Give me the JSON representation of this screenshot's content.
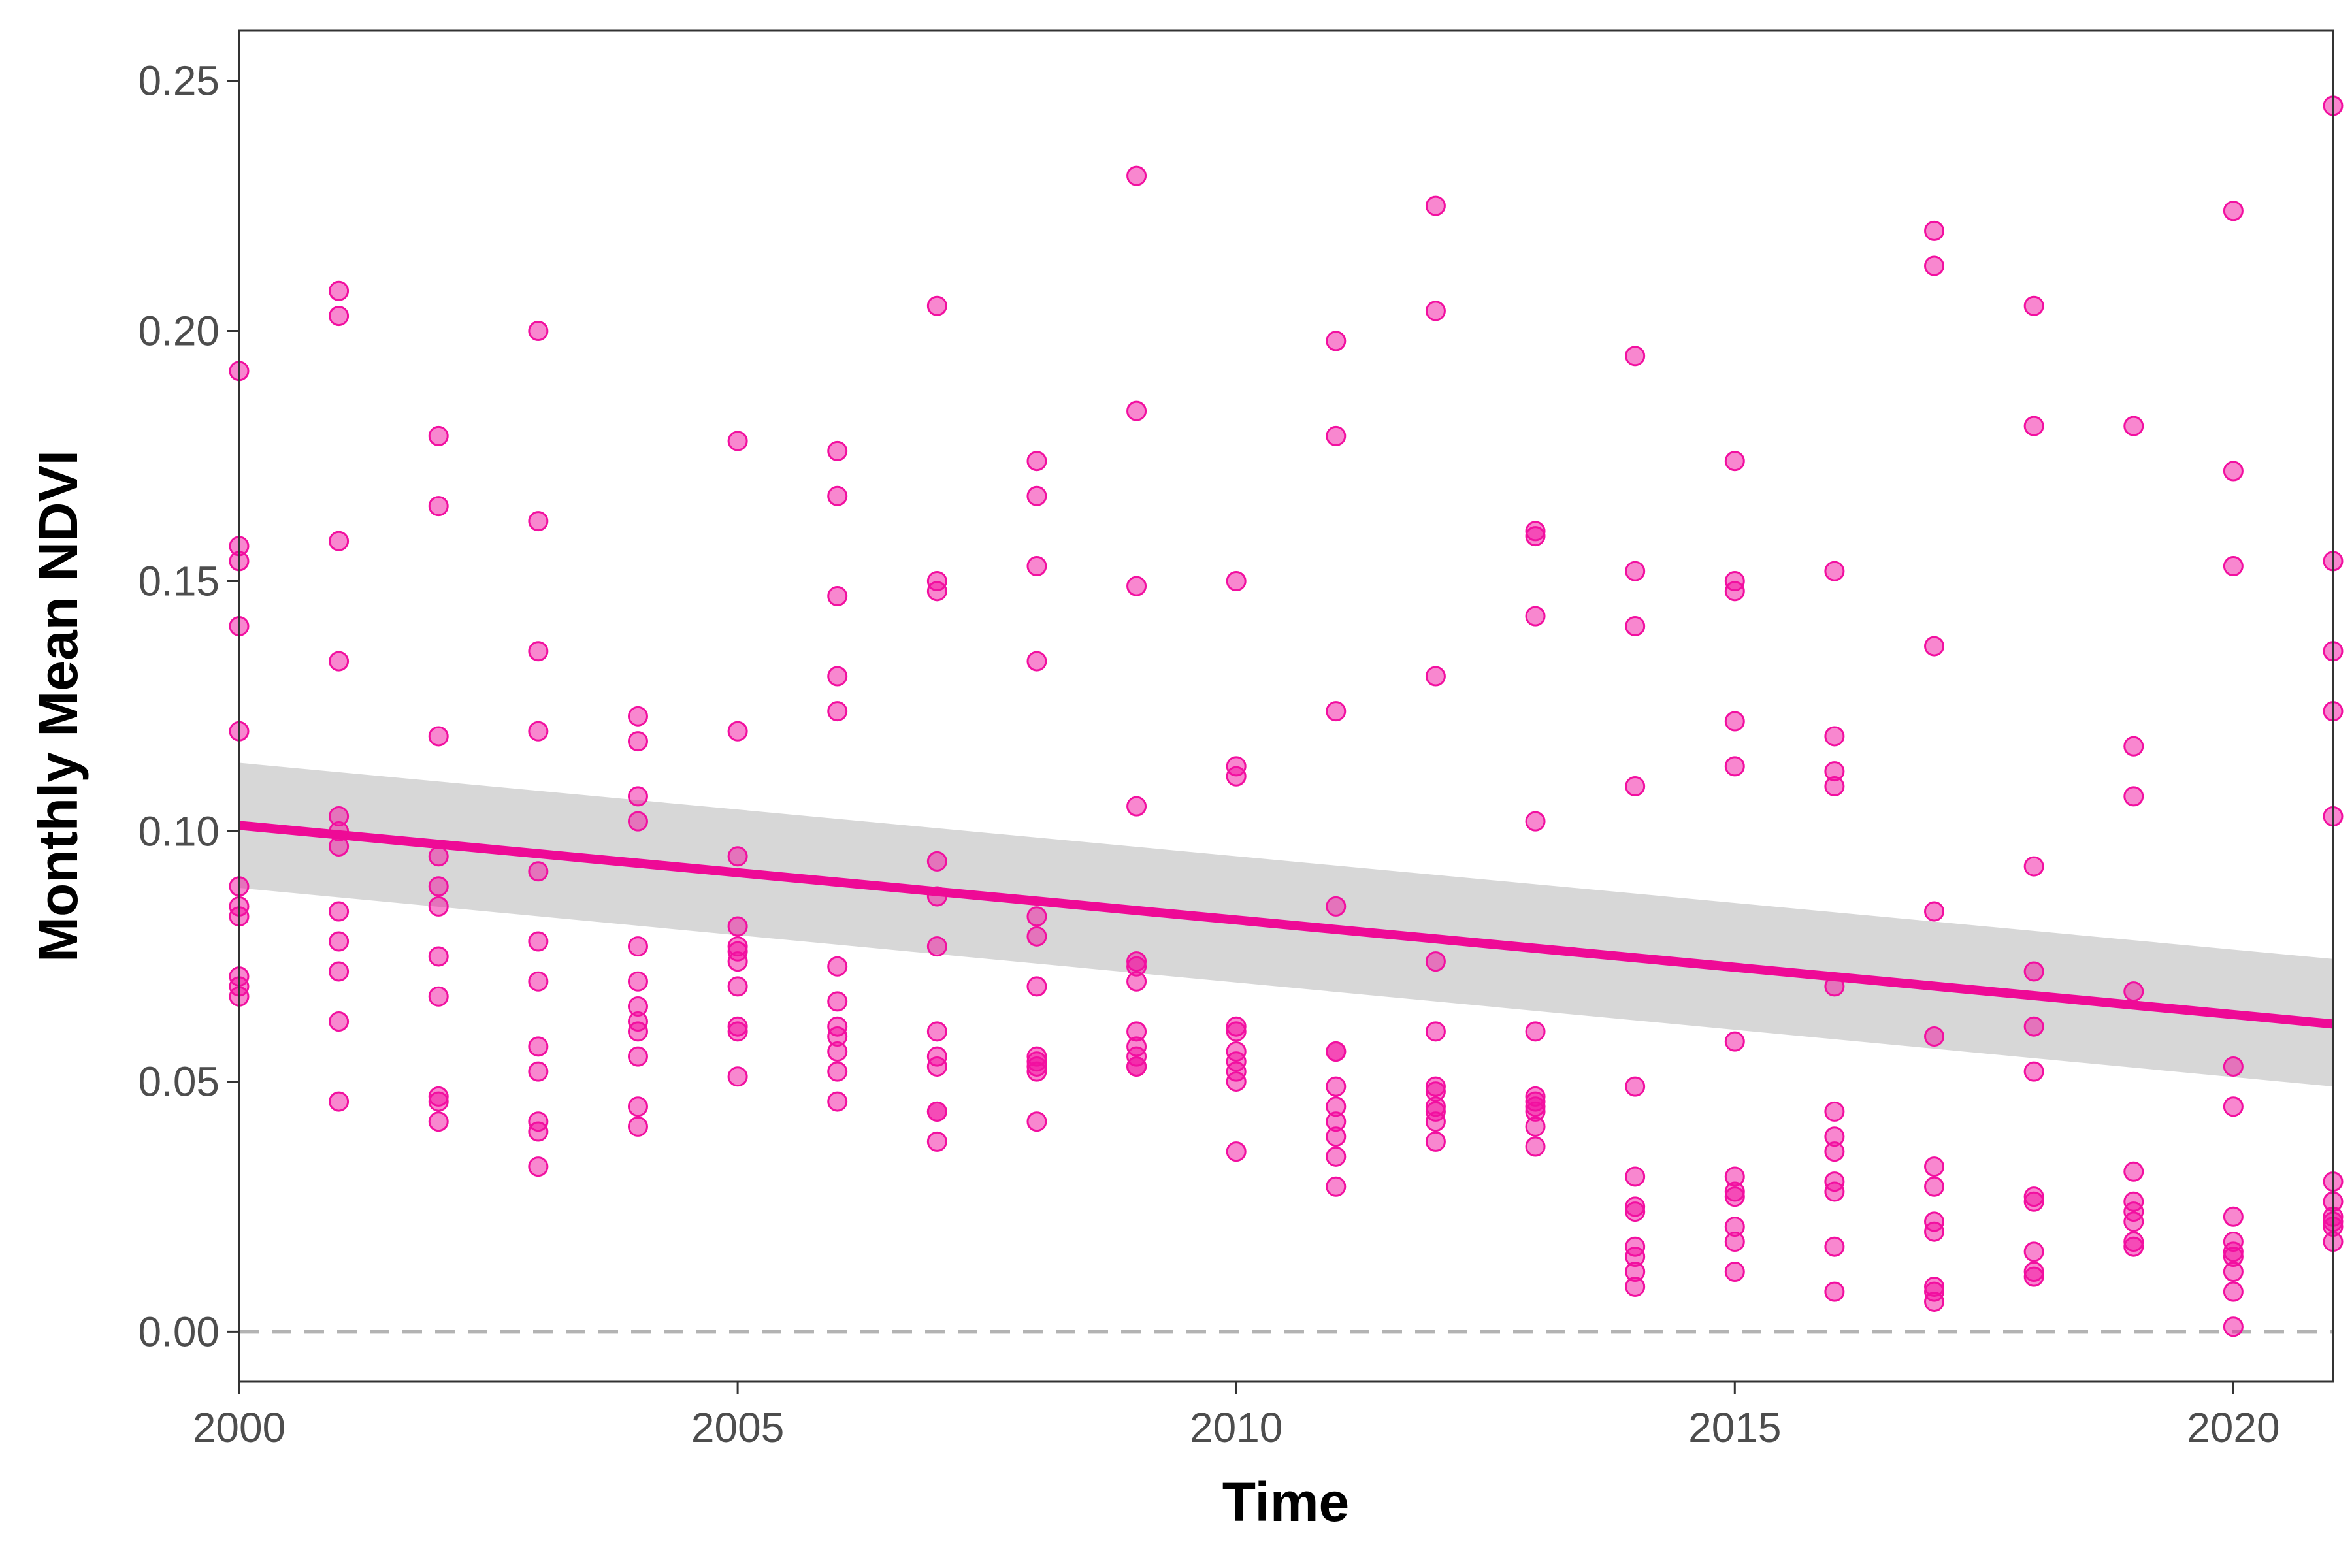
{
  "chart_data": {
    "type": "scatter",
    "title": "",
    "xlabel": "Time",
    "ylabel": "Monthly Mean NDVI",
    "xlim": [
      2000,
      2021
    ],
    "ylim": [
      -0.01,
      0.26
    ],
    "x_ticks": [
      2000,
      2005,
      2010,
      2015,
      2020
    ],
    "y_ticks": [
      0.0,
      0.05,
      0.1,
      0.15,
      0.2,
      0.25
    ],
    "y_tick_labels": [
      "0.00",
      "0.05",
      "0.10",
      "0.15",
      "0.20",
      "0.25"
    ],
    "grid": false,
    "reference_line": {
      "y": 0.0,
      "style": "dashed",
      "color": "#b3b3b3"
    },
    "point_color": "#f20fa0",
    "trend": {
      "method": "linear fit with confidence band",
      "color": "#ee0a96",
      "band_color": "#bdbdbd",
      "x": [
        2000,
        2021
      ],
      "y": [
        0.1012,
        0.0615
      ],
      "upper": [
        0.1137,
        0.0745
      ],
      "lower": [
        0.0887,
        0.049
      ]
    },
    "series": [
      {
        "points": [
          [
            2000,
            0.192
          ],
          [
            2000,
            0.157
          ],
          [
            2000,
            0.154
          ],
          [
            2000,
            0.141
          ],
          [
            2000,
            0.12
          ],
          [
            2000,
            0.089
          ],
          [
            2000,
            0.085
          ],
          [
            2000,
            0.083
          ],
          [
            2000,
            0.071
          ],
          [
            2000,
            0.069
          ],
          [
            2000,
            0.067
          ],
          [
            2001,
            0.208
          ],
          [
            2001,
            0.203
          ],
          [
            2001,
            0.158
          ],
          [
            2001,
            0.134
          ],
          [
            2001,
            0.103
          ],
          [
            2001,
            0.1
          ],
          [
            2001,
            0.097
          ],
          [
            2001,
            0.084
          ],
          [
            2001,
            0.078
          ],
          [
            2001,
            0.072
          ],
          [
            2001,
            0.062
          ],
          [
            2001,
            0.046
          ],
          [
            2002,
            0.179
          ],
          [
            2002,
            0.165
          ],
          [
            2002,
            0.119
          ],
          [
            2002,
            0.095
          ],
          [
            2002,
            0.089
          ],
          [
            2002,
            0.085
          ],
          [
            2002,
            0.075
          ],
          [
            2002,
            0.067
          ],
          [
            2002,
            0.047
          ],
          [
            2002,
            0.046
          ],
          [
            2002,
            0.042
          ],
          [
            2003,
            0.2
          ],
          [
            2003,
            0.162
          ],
          [
            2003,
            0.136
          ],
          [
            2003,
            0.12
          ],
          [
            2003,
            0.092
          ],
          [
            2003,
            0.078
          ],
          [
            2003,
            0.07
          ],
          [
            2003,
            0.057
          ],
          [
            2003,
            0.052
          ],
          [
            2003,
            0.042
          ],
          [
            2003,
            0.04
          ],
          [
            2003,
            0.033
          ],
          [
            2004,
            0.123
          ],
          [
            2004,
            0.118
          ],
          [
            2004,
            0.107
          ],
          [
            2004,
            0.102
          ],
          [
            2004,
            0.077
          ],
          [
            2004,
            0.07
          ],
          [
            2004,
            0.065
          ],
          [
            2004,
            0.062
          ],
          [
            2004,
            0.06
          ],
          [
            2004,
            0.055
          ],
          [
            2004,
            0.045
          ],
          [
            2004,
            0.041
          ],
          [
            2005,
            0.178
          ],
          [
            2005,
            0.12
          ],
          [
            2005,
            0.095
          ],
          [
            2005,
            0.081
          ],
          [
            2005,
            0.077
          ],
          [
            2005,
            0.076
          ],
          [
            2005,
            0.074
          ],
          [
            2005,
            0.069
          ],
          [
            2005,
            0.061
          ],
          [
            2005,
            0.06
          ],
          [
            2005,
            0.051
          ],
          [
            2006,
            0.176
          ],
          [
            2006,
            0.167
          ],
          [
            2006,
            0.147
          ],
          [
            2006,
            0.131
          ],
          [
            2006,
            0.124
          ],
          [
            2006,
            0.073
          ],
          [
            2006,
            0.066
          ],
          [
            2006,
            0.061
          ],
          [
            2006,
            0.059
          ],
          [
            2006,
            0.056
          ],
          [
            2006,
            0.052
          ],
          [
            2006,
            0.046
          ],
          [
            2007,
            0.205
          ],
          [
            2007,
            0.15
          ],
          [
            2007,
            0.148
          ],
          [
            2007,
            0.094
          ],
          [
            2007,
            0.087
          ],
          [
            2007,
            0.077
          ],
          [
            2007,
            0.06
          ],
          [
            2007,
            0.055
          ],
          [
            2007,
            0.053
          ],
          [
            2007,
            0.044
          ],
          [
            2007,
            0.044
          ],
          [
            2007,
            0.038
          ],
          [
            2008,
            0.174
          ],
          [
            2008,
            0.167
          ],
          [
            2008,
            0.153
          ],
          [
            2008,
            0.134
          ],
          [
            2008,
            0.083
          ],
          [
            2008,
            0.079
          ],
          [
            2008,
            0.069
          ],
          [
            2008,
            0.055
          ],
          [
            2008,
            0.054
          ],
          [
            2008,
            0.053
          ],
          [
            2008,
            0.052
          ],
          [
            2008,
            0.042
          ],
          [
            2009,
            0.231
          ],
          [
            2009,
            0.184
          ],
          [
            2009,
            0.149
          ],
          [
            2009,
            0.105
          ],
          [
            2009,
            0.074
          ],
          [
            2009,
            0.073
          ],
          [
            2009,
            0.07
          ],
          [
            2009,
            0.06
          ],
          [
            2009,
            0.057
          ],
          [
            2009,
            0.055
          ],
          [
            2009,
            0.053
          ],
          [
            2009,
            0.053
          ],
          [
            2010,
            0.15
          ],
          [
            2010,
            0.113
          ],
          [
            2010,
            0.111
          ],
          [
            2010,
            0.061
          ],
          [
            2010,
            0.06
          ],
          [
            2010,
            0.056
          ],
          [
            2010,
            0.054
          ],
          [
            2010,
            0.052
          ],
          [
            2010,
            0.05
          ],
          [
            2010,
            0.036
          ],
          [
            2011,
            0.198
          ],
          [
            2011,
            0.179
          ],
          [
            2011,
            0.124
          ],
          [
            2011,
            0.085
          ],
          [
            2011,
            0.056
          ],
          [
            2011,
            0.056
          ],
          [
            2011,
            0.049
          ],
          [
            2011,
            0.045
          ],
          [
            2011,
            0.042
          ],
          [
            2011,
            0.039
          ],
          [
            2011,
            0.035
          ],
          [
            2011,
            0.029
          ],
          [
            2012,
            0.225
          ],
          [
            2012,
            0.204
          ],
          [
            2012,
            0.131
          ],
          [
            2012,
            0.074
          ],
          [
            2012,
            0.06
          ],
          [
            2012,
            0.049
          ],
          [
            2012,
            0.048
          ],
          [
            2012,
            0.045
          ],
          [
            2012,
            0.044
          ],
          [
            2012,
            0.042
          ],
          [
            2012,
            0.038
          ],
          [
            2013,
            0.16
          ],
          [
            2013,
            0.159
          ],
          [
            2013,
            0.143
          ],
          [
            2013,
            0.102
          ],
          [
            2013,
            0.06
          ],
          [
            2013,
            0.047
          ],
          [
            2013,
            0.046
          ],
          [
            2013,
            0.045
          ],
          [
            2013,
            0.044
          ],
          [
            2013,
            0.041
          ],
          [
            2013,
            0.037
          ],
          [
            2014,
            0.195
          ],
          [
            2014,
            0.152
          ],
          [
            2014,
            0.141
          ],
          [
            2014,
            0.109
          ],
          [
            2014,
            0.049
          ],
          [
            2014,
            0.031
          ],
          [
            2014,
            0.025
          ],
          [
            2014,
            0.024
          ],
          [
            2014,
            0.017
          ],
          [
            2014,
            0.015
          ],
          [
            2014,
            0.012
          ],
          [
            2014,
            0.009
          ],
          [
            2015,
            0.174
          ],
          [
            2015,
            0.15
          ],
          [
            2015,
            0.148
          ],
          [
            2015,
            0.122
          ],
          [
            2015,
            0.113
          ],
          [
            2015,
            0.058
          ],
          [
            2015,
            0.031
          ],
          [
            2015,
            0.028
          ],
          [
            2015,
            0.027
          ],
          [
            2015,
            0.021
          ],
          [
            2015,
            0.018
          ],
          [
            2015,
            0.012
          ],
          [
            2016,
            0.152
          ],
          [
            2016,
            0.119
          ],
          [
            2016,
            0.112
          ],
          [
            2016,
            0.109
          ],
          [
            2016,
            0.069
          ],
          [
            2016,
            0.044
          ],
          [
            2016,
            0.039
          ],
          [
            2016,
            0.036
          ],
          [
            2016,
            0.03
          ],
          [
            2016,
            0.028
          ],
          [
            2016,
            0.017
          ],
          [
            2016,
            0.008
          ],
          [
            2017,
            0.22
          ],
          [
            2017,
            0.213
          ],
          [
            2017,
            0.137
          ],
          [
            2017,
            0.084
          ],
          [
            2017,
            0.059
          ],
          [
            2017,
            0.033
          ],
          [
            2017,
            0.029
          ],
          [
            2017,
            0.022
          ],
          [
            2017,
            0.02
          ],
          [
            2017,
            0.009
          ],
          [
            2017,
            0.008
          ],
          [
            2017,
            0.006
          ],
          [
            2018,
            0.205
          ],
          [
            2018,
            0.181
          ],
          [
            2018,
            0.093
          ],
          [
            2018,
            0.072
          ],
          [
            2018,
            0.061
          ],
          [
            2018,
            0.052
          ],
          [
            2018,
            0.027
          ],
          [
            2018,
            0.026
          ],
          [
            2018,
            0.016
          ],
          [
            2018,
            0.012
          ],
          [
            2018,
            0.011
          ],
          [
            2019,
            0.181
          ],
          [
            2019,
            0.117
          ],
          [
            2019,
            0.107
          ],
          [
            2019,
            0.068
          ],
          [
            2019,
            0.032
          ],
          [
            2019,
            0.026
          ],
          [
            2019,
            0.024
          ],
          [
            2019,
            0.022
          ],
          [
            2019,
            0.018
          ],
          [
            2019,
            0.017
          ],
          [
            2020,
            0.224
          ],
          [
            2020,
            0.172
          ],
          [
            2020,
            0.153
          ],
          [
            2020,
            0.053
          ],
          [
            2020,
            0.045
          ],
          [
            2020,
            0.023
          ],
          [
            2020,
            0.018
          ],
          [
            2020,
            0.016
          ],
          [
            2020,
            0.015
          ],
          [
            2020,
            0.012
          ],
          [
            2020,
            0.008
          ],
          [
            2020,
            0.001
          ],
          [
            2021,
            0.245
          ],
          [
            2021,
            0.154
          ],
          [
            2021,
            0.136
          ],
          [
            2021,
            0.124
          ],
          [
            2021,
            0.103
          ],
          [
            2021,
            0.03
          ],
          [
            2021,
            0.026
          ],
          [
            2021,
            0.023
          ],
          [
            2021,
            0.022
          ],
          [
            2021,
            0.021
          ],
          [
            2021,
            0.018
          ]
        ]
      }
    ]
  }
}
